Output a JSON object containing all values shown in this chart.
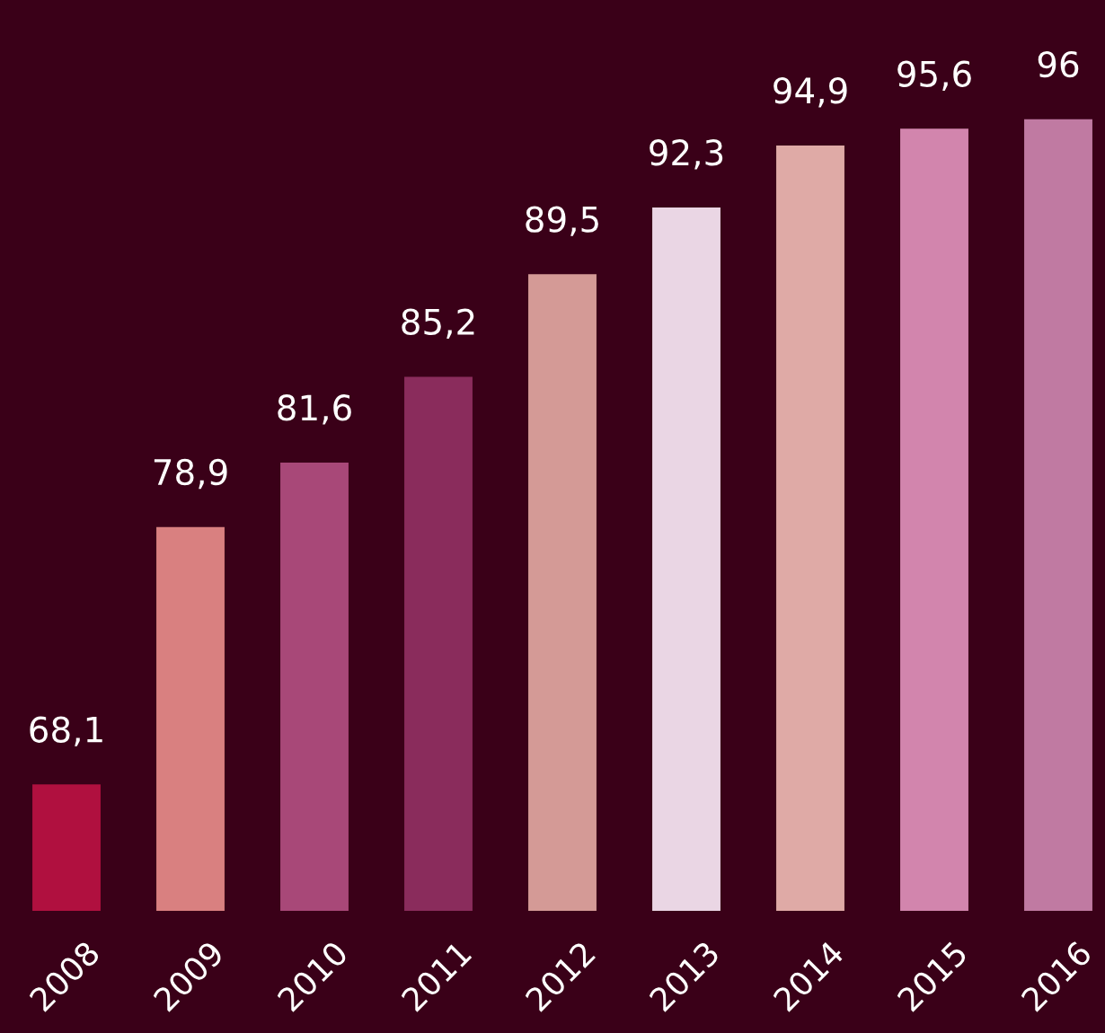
{
  "chart_data": {
    "type": "bar",
    "categories": [
      "2008",
      "2009",
      "2010",
      "2011",
      "2012",
      "2013",
      "2014",
      "2015",
      "2016"
    ],
    "values": [
      68.1,
      78.9,
      81.6,
      85.2,
      89.5,
      92.3,
      94.9,
      95.6,
      96
    ],
    "value_labels": [
      "68,1",
      "78,9",
      "81,6",
      "85,2",
      "89,5",
      "92,3",
      "94,9",
      "95,6",
      "96"
    ],
    "colors": [
      "#b0103f",
      "#d98080",
      "#a84878",
      "#8a2c5c",
      "#d49a96",
      "#ead6e4",
      "#dfaaa6",
      "#d285ad",
      "#c07aa2"
    ],
    "ylim": [
      62.8,
      101
    ],
    "tick_labels": "x",
    "grid": false,
    "legend": false
  }
}
